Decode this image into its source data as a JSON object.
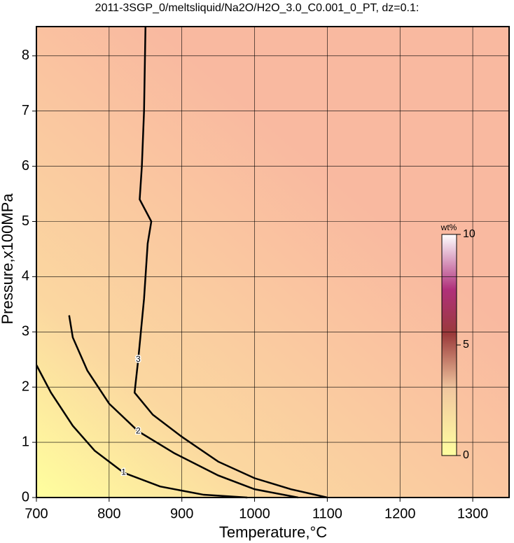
{
  "chart_data": {
    "type": "contour",
    "title": "2011-3SGP_0/meltsliquid/Na2O/H2O_3.0_C0.001_0_PT, dz=0.1:",
    "x_label": "Temperature,°C",
    "y_label": "Pressure,x100MPa",
    "xlim": [
      700,
      1350
    ],
    "ylim": [
      0,
      8.53
    ],
    "xticks": [
      700,
      800,
      900,
      1000,
      1100,
      1200,
      1300
    ],
    "yticks": [
      0,
      1,
      2,
      3,
      4,
      5,
      6,
      7,
      8
    ],
    "grid": true,
    "contours": [
      {
        "level": 1,
        "x": [
          700,
          720,
          750,
          780,
          820,
          870,
          930,
          990
        ],
        "y": [
          2.4,
          1.9,
          1.3,
          0.85,
          0.45,
          0.2,
          0.05,
          0
        ]
      },
      {
        "level": 2,
        "x": [
          745,
          750,
          770,
          800,
          840,
          890,
          950,
          1000,
          1060
        ],
        "y": [
          3.3,
          2.9,
          2.3,
          1.7,
          1.2,
          0.8,
          0.4,
          0.15,
          0
        ]
      },
      {
        "level": 3,
        "x": [
          850,
          848,
          845,
          842,
          858,
          853,
          848,
          840,
          835,
          860,
          900,
          950,
          1000,
          1050,
          1100
        ],
        "y": [
          8.53,
          7,
          6,
          5.4,
          5.0,
          4.6,
          3.6,
          2.5,
          1.9,
          1.5,
          1.1,
          0.65,
          0.35,
          0.15,
          0
        ]
      }
    ],
    "colorbar": {
      "label": "wt%",
      "lim": [
        0,
        10
      ],
      "ticks": [
        0,
        5,
        10
      ]
    }
  }
}
